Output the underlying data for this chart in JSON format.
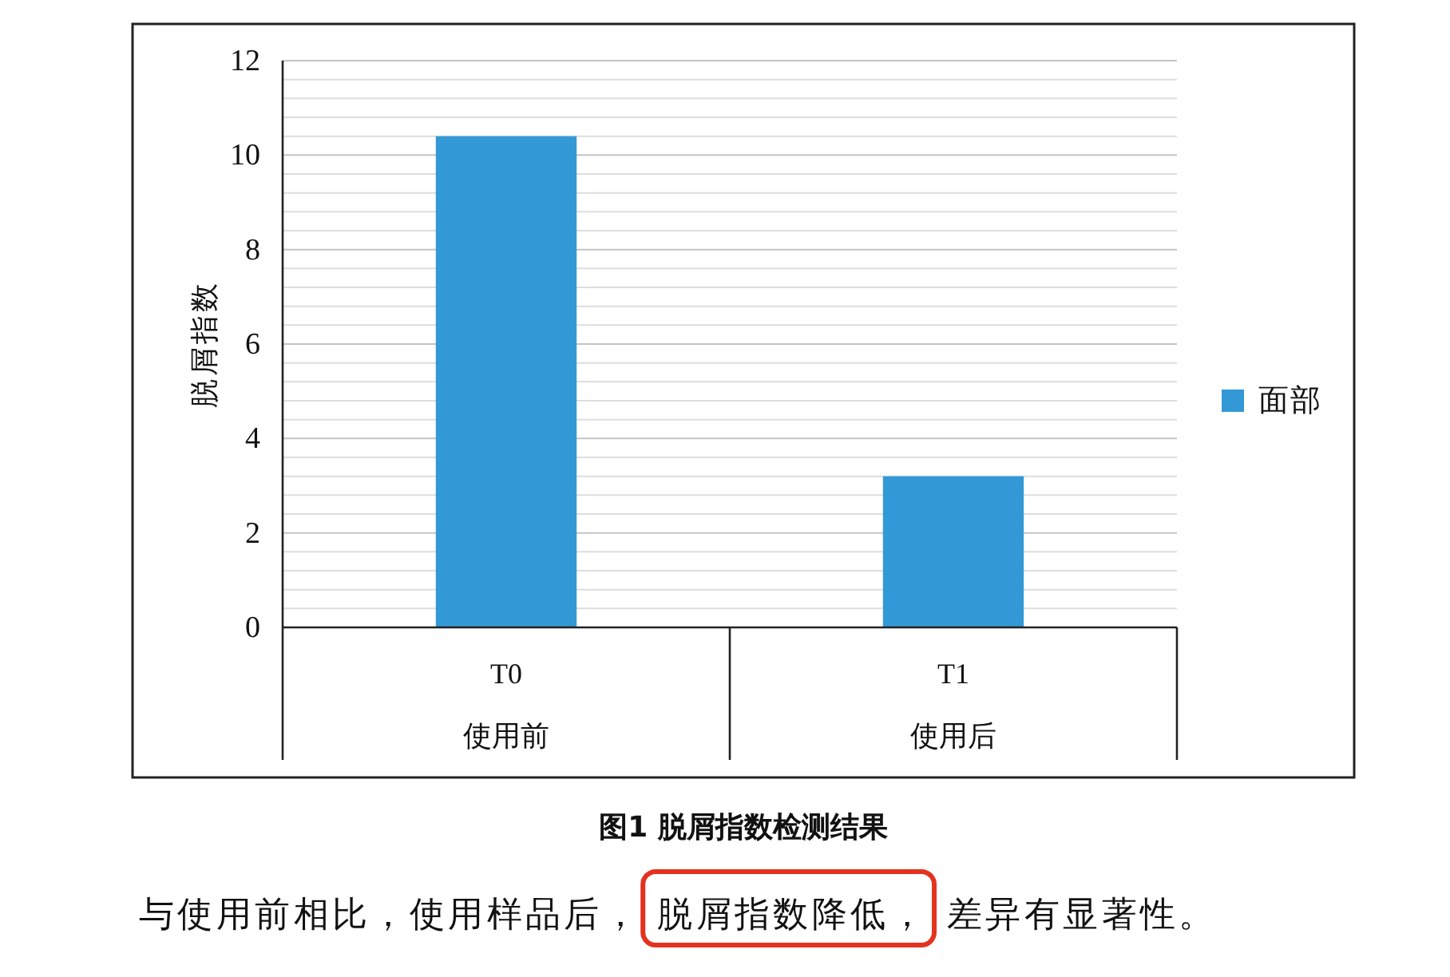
{
  "chart_data": {
    "type": "bar",
    "title": "图1 脱屑指数检测结果",
    "ylabel": "脱屑指数",
    "categories": [
      "T0\n使用前",
      "T1\n使用后"
    ],
    "series": [
      {
        "name": "面部",
        "color": "#3399d6",
        "values": [
          10.4,
          3.2
        ]
      }
    ],
    "ylim": [
      0,
      12
    ],
    "yticks": [
      0,
      {
        "value": 0.4,
        "label": null
      },
      {
        "value": 0.8,
        "label": null
      },
      {
        "value": 1.2,
        "label": null
      },
      {
        "value": 1.6,
        "label": null
      },
      2,
      {
        "value": 2.4,
        "label": null
      },
      {
        "value": 2.8,
        "label": null
      },
      {
        "value": 3.2,
        "label": null
      },
      {
        "value": 3.6,
        "label": null
      },
      4,
      {
        "value": 4.4,
        "label": null
      },
      {
        "value": 4.8,
        "label": null
      },
      {
        "value": 5.2,
        "label": null
      },
      {
        "value": 5.6,
        "label": null
      },
      6,
      {
        "value": 6.4,
        "label": null
      },
      {
        "value": 6.8,
        "label": null
      },
      {
        "value": 7.2,
        "label": null
      },
      {
        "value": 7.6,
        "label": null
      },
      8,
      {
        "value": 8.4,
        "label": null
      },
      {
        "value": 8.8,
        "label": null
      },
      {
        "value": 9.2,
        "label": null
      },
      {
        "value": 9.6,
        "label": null
      },
      10,
      {
        "value": 10.4,
        "label": null
      },
      {
        "value": 10.8,
        "label": null
      },
      {
        "value": 11.2,
        "label": null
      },
      {
        "value": 11.6,
        "label": null
      },
      12
    ],
    "grid": "y",
    "legend": "right",
    "annotations": [
      "与使用前相比，使用样品后，",
      "脱屑指数降低，",
      "差异有显著性。"
    ]
  }
}
